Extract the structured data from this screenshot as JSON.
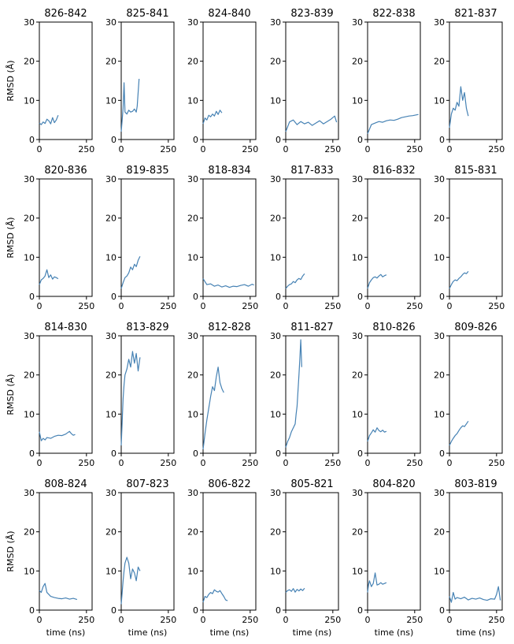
{
  "figure": {
    "shared_ylabel": "RMSD (Å)",
    "shared_xlabel": "time (ns)",
    "line_color": "#4682b4",
    "y_ticks": [
      0,
      10,
      20,
      30
    ],
    "x_ticks": [
      0,
      250
    ]
  },
  "chart_data": [
    {
      "type": "line",
      "title": "826-842",
      "xlim": [
        0,
        280
      ],
      "ylim": [
        0,
        30
      ],
      "series": [
        {
          "x": [
            0,
            10,
            20,
            30,
            40,
            50,
            60,
            70,
            80,
            90,
            100
          ],
          "y": [
            4.2,
            3.8,
            4.5,
            4.1,
            5.2,
            4.8,
            4.0,
            5.6,
            4.3,
            5.0,
            6.2
          ]
        }
      ]
    },
    {
      "type": "line",
      "title": "825-841",
      "xlim": [
        0,
        280
      ],
      "ylim": [
        0,
        30
      ],
      "series": [
        {
          "x": [
            0,
            5,
            10,
            15,
            20,
            30,
            40,
            50,
            60,
            70,
            80,
            85,
            90,
            95
          ],
          "y": [
            2.0,
            5.0,
            8.0,
            14.5,
            7.0,
            6.5,
            7.5,
            7.0,
            7.2,
            7.8,
            7.0,
            8.5,
            12.0,
            15.5
          ]
        }
      ]
    },
    {
      "type": "line",
      "title": "824-840",
      "xlim": [
        0,
        280
      ],
      "ylim": [
        0,
        30
      ],
      "series": [
        {
          "x": [
            0,
            10,
            20,
            30,
            40,
            50,
            60,
            70,
            80,
            90,
            100
          ],
          "y": [
            4.0,
            5.5,
            5.0,
            6.2,
            5.8,
            6.5,
            6.0,
            7.2,
            6.4,
            7.5,
            6.8
          ]
        }
      ]
    },
    {
      "type": "line",
      "title": "823-839",
      "xlim": [
        0,
        280
      ],
      "ylim": [
        0,
        30
      ],
      "series": [
        {
          "x": [
            0,
            20,
            40,
            60,
            80,
            100,
            120,
            140,
            160,
            180,
            200,
            220,
            240,
            260,
            270
          ],
          "y": [
            2.0,
            4.5,
            5.0,
            3.8,
            4.6,
            4.0,
            4.4,
            3.6,
            4.2,
            4.8,
            4.0,
            4.6,
            5.2,
            6.0,
            4.4
          ]
        }
      ]
    },
    {
      "type": "line",
      "title": "822-838",
      "xlim": [
        0,
        280
      ],
      "ylim": [
        0,
        30
      ],
      "series": [
        {
          "x": [
            0,
            20,
            40,
            60,
            80,
            100,
            120,
            140,
            160,
            180,
            200,
            220,
            240,
            260,
            270
          ],
          "y": [
            1.5,
            3.8,
            4.2,
            4.6,
            4.4,
            4.8,
            5.0,
            4.9,
            5.2,
            5.6,
            5.8,
            6.0,
            6.1,
            6.3,
            6.4
          ]
        }
      ]
    },
    {
      "type": "line",
      "title": "821-837",
      "xlim": [
        0,
        280
      ],
      "ylim": [
        0,
        30
      ],
      "series": [
        {
          "x": [
            0,
            10,
            20,
            30,
            40,
            50,
            60,
            70,
            80,
            90,
            100
          ],
          "y": [
            3.0,
            6.5,
            8.0,
            7.5,
            9.5,
            8.5,
            13.5,
            10.0,
            12.0,
            8.0,
            6.0
          ]
        }
      ]
    },
    {
      "type": "line",
      "title": "820-836",
      "xlim": [
        0,
        280
      ],
      "ylim": [
        0,
        30
      ],
      "series": [
        {
          "x": [
            0,
            10,
            20,
            30,
            40,
            50,
            60,
            70,
            80,
            90,
            100
          ],
          "y": [
            3.0,
            4.2,
            4.6,
            5.2,
            6.8,
            4.8,
            5.5,
            4.4,
            5.0,
            4.8,
            4.5
          ]
        }
      ]
    },
    {
      "type": "line",
      "title": "819-835",
      "xlim": [
        0,
        280
      ],
      "ylim": [
        0,
        30
      ],
      "series": [
        {
          "x": [
            0,
            10,
            20,
            30,
            40,
            50,
            60,
            70,
            80,
            90,
            100
          ],
          "y": [
            2.0,
            3.5,
            4.8,
            5.2,
            6.0,
            7.5,
            6.8,
            8.2,
            7.6,
            9.2,
            10.2
          ]
        }
      ]
    },
    {
      "type": "line",
      "title": "818-834",
      "xlim": [
        0,
        280
      ],
      "ylim": [
        0,
        30
      ],
      "series": [
        {
          "x": [
            0,
            20,
            40,
            60,
            80,
            100,
            120,
            140,
            160,
            180,
            200,
            220,
            240,
            260,
            270
          ],
          "y": [
            4.5,
            3.0,
            3.2,
            2.6,
            2.9,
            2.4,
            2.7,
            2.3,
            2.6,
            2.5,
            2.8,
            3.0,
            2.6,
            3.1,
            2.9
          ]
        }
      ]
    },
    {
      "type": "line",
      "title": "817-833",
      "xlim": [
        0,
        280
      ],
      "ylim": [
        0,
        30
      ],
      "series": [
        {
          "x": [
            0,
            10,
            20,
            30,
            40,
            50,
            60,
            70,
            80,
            90,
            100
          ],
          "y": [
            2.0,
            2.6,
            3.0,
            3.2,
            3.8,
            3.5,
            4.2,
            4.6,
            4.3,
            5.2,
            5.8
          ]
        }
      ]
    },
    {
      "type": "line",
      "title": "816-832",
      "xlim": [
        0,
        280
      ],
      "ylim": [
        0,
        30
      ],
      "series": [
        {
          "x": [
            0,
            10,
            20,
            30,
            40,
            50,
            60,
            70,
            80,
            90,
            100
          ],
          "y": [
            2.0,
            3.5,
            4.2,
            4.8,
            5.0,
            4.7,
            5.2,
            5.6,
            5.0,
            5.3,
            5.5
          ]
        }
      ]
    },
    {
      "type": "line",
      "title": "815-831",
      "xlim": [
        0,
        280
      ],
      "ylim": [
        0,
        30
      ],
      "series": [
        {
          "x": [
            0,
            10,
            20,
            30,
            40,
            50,
            60,
            70,
            80,
            90,
            100
          ],
          "y": [
            2.0,
            3.0,
            3.8,
            4.2,
            4.0,
            4.6,
            5.0,
            5.6,
            6.0,
            5.8,
            6.4
          ]
        }
      ]
    },
    {
      "type": "line",
      "title": "814-830",
      "xlim": [
        0,
        280
      ],
      "ylim": [
        0,
        30
      ],
      "series": [
        {
          "x": [
            0,
            10,
            20,
            30,
            40,
            60,
            80,
            100,
            120,
            140,
            160,
            170,
            180,
            190
          ],
          "y": [
            5.5,
            3.2,
            3.8,
            3.4,
            4.0,
            3.8,
            4.3,
            4.6,
            4.5,
            4.9,
            5.6,
            5.0,
            4.6,
            4.8
          ]
        }
      ]
    },
    {
      "type": "line",
      "title": "813-829",
      "xlim": [
        0,
        280
      ],
      "ylim": [
        0,
        30
      ],
      "series": [
        {
          "x": [
            0,
            5,
            10,
            15,
            20,
            30,
            40,
            50,
            60,
            70,
            80,
            90,
            100
          ],
          "y": [
            2.0,
            8.0,
            14.0,
            17.5,
            20.0,
            21.5,
            24.0,
            22.0,
            26.0,
            23.0,
            25.5,
            21.0,
            24.5
          ]
        }
      ]
    },
    {
      "type": "line",
      "title": "812-828",
      "xlim": [
        0,
        280
      ],
      "ylim": [
        0,
        30
      ],
      "series": [
        {
          "x": [
            0,
            10,
            20,
            30,
            40,
            50,
            60,
            70,
            80,
            90,
            100,
            110
          ],
          "y": [
            1.0,
            5.0,
            8.5,
            11.5,
            14.5,
            17.0,
            16.0,
            19.5,
            22.0,
            18.0,
            16.5,
            15.5
          ]
        }
      ]
    },
    {
      "type": "line",
      "title": "811-827",
      "xlim": [
        0,
        280
      ],
      "ylim": [
        0,
        30
      ],
      "series": [
        {
          "x": [
            0,
            10,
            20,
            30,
            40,
            50,
            55,
            60,
            65,
            70,
            75,
            80,
            85
          ],
          "y": [
            1.5,
            3.0,
            4.0,
            5.5,
            6.5,
            7.5,
            10.0,
            12.0,
            16.0,
            20.0,
            24.0,
            29.0,
            22.0
          ]
        }
      ]
    },
    {
      "type": "line",
      "title": "810-826",
      "xlim": [
        0,
        280
      ],
      "ylim": [
        0,
        30
      ],
      "series": [
        {
          "x": [
            0,
            10,
            20,
            30,
            40,
            50,
            60,
            70,
            80,
            90,
            100
          ],
          "y": [
            3.0,
            4.5,
            5.2,
            6.0,
            5.4,
            6.5,
            5.8,
            5.5,
            5.9,
            5.4,
            5.6
          ]
        }
      ]
    },
    {
      "type": "line",
      "title": "809-826",
      "xlim": [
        0,
        280
      ],
      "ylim": [
        0,
        30
      ],
      "series": [
        {
          "x": [
            0,
            10,
            20,
            30,
            40,
            50,
            60,
            70,
            80,
            90,
            100
          ],
          "y": [
            2.0,
            3.0,
            3.8,
            4.5,
            5.0,
            5.8,
            6.5,
            7.0,
            6.8,
            7.5,
            8.2
          ]
        }
      ]
    },
    {
      "type": "line",
      "title": "808-824",
      "xlim": [
        0,
        280
      ],
      "ylim": [
        0,
        30
      ],
      "series": [
        {
          "x": [
            0,
            10,
            20,
            30,
            40,
            60,
            80,
            100,
            120,
            140,
            160,
            180,
            200
          ],
          "y": [
            5.0,
            4.5,
            6.0,
            6.8,
            4.5,
            3.5,
            3.2,
            3.0,
            2.9,
            3.1,
            2.8,
            3.0,
            2.7
          ]
        }
      ]
    },
    {
      "type": "line",
      "title": "807-823",
      "xlim": [
        0,
        280
      ],
      "ylim": [
        0,
        30
      ],
      "series": [
        {
          "x": [
            0,
            5,
            10,
            15,
            20,
            30,
            40,
            50,
            60,
            70,
            80,
            90,
            100
          ],
          "y": [
            1.5,
            4.5,
            7.5,
            10.0,
            12.0,
            13.5,
            12.0,
            8.0,
            10.5,
            9.5,
            7.5,
            11.0,
            10.0
          ]
        }
      ]
    },
    {
      "type": "line",
      "title": "806-822",
      "xlim": [
        0,
        280
      ],
      "ylim": [
        0,
        30
      ],
      "series": [
        {
          "x": [
            0,
            10,
            20,
            30,
            40,
            50,
            60,
            70,
            80,
            90,
            100,
            110,
            120,
            130
          ],
          "y": [
            2.0,
            3.5,
            3.2,
            4.0,
            4.5,
            4.2,
            5.2,
            4.8,
            4.6,
            5.0,
            4.2,
            3.5,
            2.6,
            2.4
          ]
        }
      ]
    },
    {
      "type": "line",
      "title": "805-821",
      "xlim": [
        0,
        280
      ],
      "ylim": [
        0,
        30
      ],
      "series": [
        {
          "x": [
            0,
            10,
            20,
            30,
            40,
            50,
            60,
            70,
            80,
            90,
            100
          ],
          "y": [
            4.5,
            5.0,
            5.2,
            4.8,
            5.5,
            4.6,
            5.3,
            4.9,
            5.4,
            5.0,
            5.6
          ]
        }
      ]
    },
    {
      "type": "line",
      "title": "804-820",
      "xlim": [
        0,
        280
      ],
      "ylim": [
        0,
        30
      ],
      "series": [
        {
          "x": [
            0,
            5,
            10,
            20,
            30,
            40,
            50,
            60,
            70,
            80,
            90,
            100
          ],
          "y": [
            4.5,
            6.5,
            7.5,
            6.0,
            6.8,
            9.5,
            6.4,
            6.6,
            7.0,
            6.6,
            6.8,
            7.0
          ]
        }
      ]
    },
    {
      "type": "line",
      "title": "803-819",
      "xlim": [
        0,
        280
      ],
      "ylim": [
        0,
        30
      ],
      "series": [
        {
          "x": [
            0,
            10,
            20,
            30,
            40,
            60,
            80,
            100,
            120,
            140,
            160,
            180,
            200,
            220,
            240,
            250,
            260,
            270
          ],
          "y": [
            3.5,
            2.0,
            4.5,
            2.8,
            3.2,
            2.9,
            3.3,
            2.6,
            3.0,
            2.8,
            3.1,
            2.7,
            2.5,
            2.9,
            2.8,
            4.0,
            6.0,
            2.5
          ]
        }
      ]
    }
  ]
}
